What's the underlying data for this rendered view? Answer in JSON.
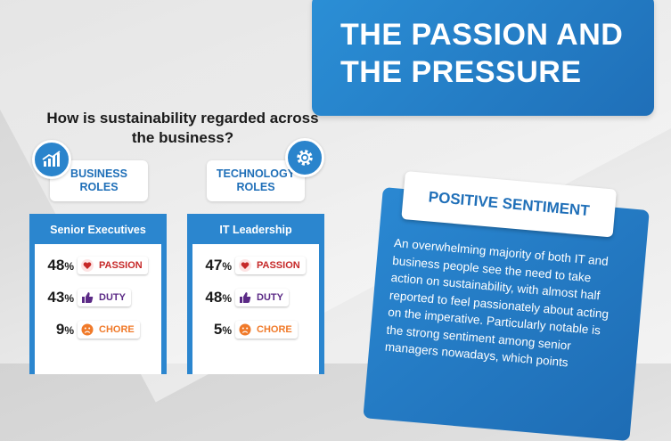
{
  "title": {
    "line1": "THE PASSION AND",
    "line2": "THE PRESSURE"
  },
  "question": "How is sustainability regarded across the business?",
  "roles": [
    {
      "label_line1": "BUSINESS",
      "label_line2": "ROLES",
      "icon": "growth-chart-icon"
    },
    {
      "label_line1": "TECHNOLOGY",
      "label_line2": "ROLES",
      "icon": "gear-icon"
    }
  ],
  "panels": [
    {
      "heading": "Senior Executives",
      "rows": [
        {
          "value": "48",
          "unit": "%",
          "label": "PASSION",
          "icon": "heart-icon"
        },
        {
          "value": "43",
          "unit": "%",
          "label": "DUTY",
          "icon": "thumbs-up-icon"
        },
        {
          "value": "9",
          "unit": "%",
          "label": "CHORE",
          "icon": "frown-face-icon"
        }
      ]
    },
    {
      "heading": "IT Leadership",
      "rows": [
        {
          "value": "47",
          "unit": "%",
          "label": "PASSION",
          "icon": "heart-icon"
        },
        {
          "value": "48",
          "unit": "%",
          "label": "DUTY",
          "icon": "thumbs-up-icon"
        },
        {
          "value": "5",
          "unit": "%",
          "label": "CHORE",
          "icon": "frown-face-icon"
        }
      ]
    }
  ],
  "sentiment": {
    "heading": "POSITIVE SENTIMENT",
    "body": "An overwhelming majority of both IT and business people see the need to take action on sustainability, with almost half reported to feel passionately about acting on the imperative. Particularly notable is the strong sentiment among senior managers nowadays, which points"
  },
  "colors": {
    "brand_blue": "#1f6fb8",
    "passion": "#c62828",
    "duty": "#5b2a86",
    "chore": "#f07a2a"
  }
}
